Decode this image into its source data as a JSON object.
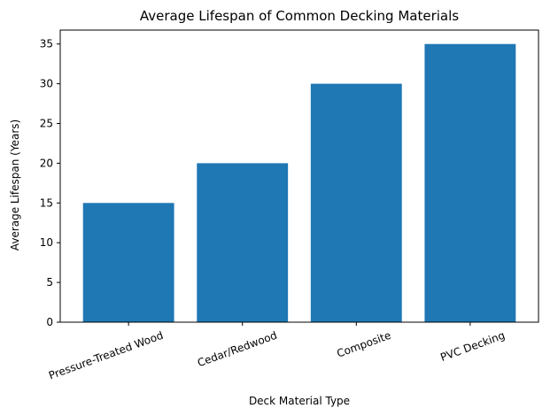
{
  "chart_data": {
    "type": "bar",
    "title": "Average Lifespan of Common Decking Materials",
    "xlabel": "Deck Material Type",
    "ylabel": "Average Lifespan (Years)",
    "categories": [
      "Pressure-Treated Wood",
      "Cedar/Redwood",
      "Composite",
      "PVC Decking"
    ],
    "values": [
      15,
      20,
      30,
      35
    ],
    "ylim": [
      0,
      36.75
    ],
    "yticks": [
      0,
      5,
      10,
      15,
      20,
      25,
      30,
      35
    ],
    "bar_color": "#1f77b4",
    "grid": false,
    "legend": "none"
  }
}
